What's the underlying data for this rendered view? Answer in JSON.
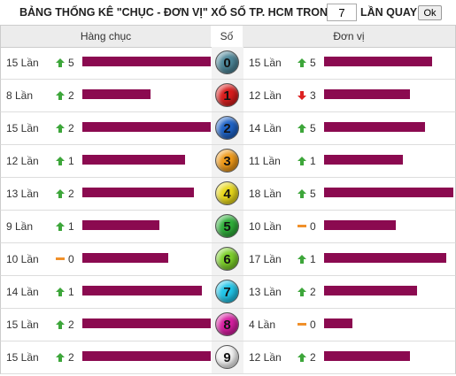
{
  "header": {
    "title": "BẢNG THỐNG KÊ \"CHỤC - ĐƠN VỊ\" XỔ SỐ TP. HCM TRONG",
    "rounds": 7,
    "rounds_suffix": "LẦN QUAY",
    "button": "Ok"
  },
  "columns": [
    "Hàng chục",
    "Số",
    "Đơn vị"
  ],
  "rows": [
    {
      "digit": 0,
      "tens": {
        "count": 15,
        "count_label": "15 Lần",
        "trend": "up",
        "change": 5
      },
      "units": {
        "count": 15,
        "count_label": "15 Lần",
        "trend": "up",
        "change": 5
      }
    },
    {
      "digit": 1,
      "tens": {
        "count": 8,
        "count_label": "8 Lần",
        "trend": "up",
        "change": 2
      },
      "units": {
        "count": 12,
        "count_label": "12 Lần",
        "trend": "down",
        "change": 3
      }
    },
    {
      "digit": 2,
      "tens": {
        "count": 15,
        "count_label": "15 Lần",
        "trend": "up",
        "change": 2
      },
      "units": {
        "count": 14,
        "count_label": "14 Lần",
        "trend": "up",
        "change": 5
      }
    },
    {
      "digit": 3,
      "tens": {
        "count": 12,
        "count_label": "12 Lần",
        "trend": "up",
        "change": 1
      },
      "units": {
        "count": 11,
        "count_label": "11 Lần",
        "trend": "up",
        "change": 1
      }
    },
    {
      "digit": 4,
      "tens": {
        "count": 13,
        "count_label": "13 Lần",
        "trend": "up",
        "change": 2
      },
      "units": {
        "count": 18,
        "count_label": "18 Lần",
        "trend": "up",
        "change": 5
      }
    },
    {
      "digit": 5,
      "tens": {
        "count": 9,
        "count_label": "9 Lần",
        "trend": "up",
        "change": 1
      },
      "units": {
        "count": 10,
        "count_label": "10 Lần",
        "trend": "flat",
        "change": 0
      }
    },
    {
      "digit": 6,
      "tens": {
        "count": 10,
        "count_label": "10 Lần",
        "trend": "flat",
        "change": 0
      },
      "units": {
        "count": 17,
        "count_label": "17 Lần",
        "trend": "up",
        "change": 1
      }
    },
    {
      "digit": 7,
      "tens": {
        "count": 14,
        "count_label": "14 Lần",
        "trend": "up",
        "change": 1
      },
      "units": {
        "count": 13,
        "count_label": "13 Lần",
        "trend": "up",
        "change": 2
      }
    },
    {
      "digit": 8,
      "tens": {
        "count": 15,
        "count_label": "15 Lần",
        "trend": "up",
        "change": 2
      },
      "units": {
        "count": 4,
        "count_label": "4 Lần",
        "trend": "flat",
        "change": 0
      }
    },
    {
      "digit": 9,
      "tens": {
        "count": 15,
        "count_label": "15 Lần",
        "trend": "up",
        "change": 2
      },
      "units": {
        "count": 12,
        "count_label": "12 Lần",
        "trend": "up",
        "change": 2
      }
    }
  ]
}
